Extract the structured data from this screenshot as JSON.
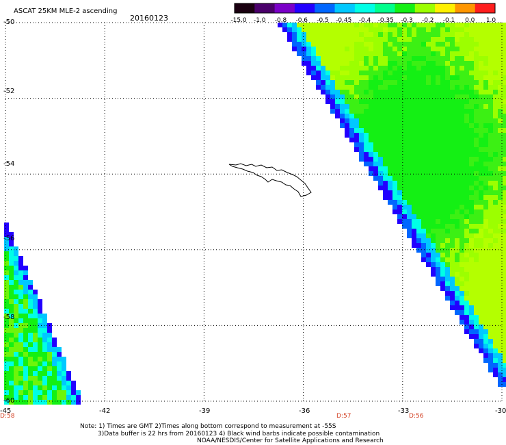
{
  "header": {
    "title": "ASCAT 25KM MLE-2 ascending",
    "date": "20160123"
  },
  "colorbar": {
    "labels": [
      "-15.0",
      "-1.0",
      "-0.8",
      "-0.6",
      "-0.5",
      "-0.45",
      "-0.4",
      "-0.35",
      "-0.3",
      "-0.2",
      "-0.1",
      "0.0",
      "1.0"
    ],
    "colors": [
      "#1a0010",
      "#4a006a",
      "#7a00c8",
      "#2200ff",
      "#0066ff",
      "#00c8ff",
      "#00ffe6",
      "#00ff8c",
      "#14f014",
      "#9cff00",
      "#fff000",
      "#ff9600",
      "#ff1e1e"
    ]
  },
  "axes": {
    "lat_ticks": [
      "-50",
      "-52",
      "-54",
      "-56",
      "-58",
      "-60"
    ],
    "lon_ticks": [
      "-45",
      "-42",
      "-39",
      "-36",
      "-33",
      "-30"
    ]
  },
  "time_labels": [
    {
      "text": "D:58",
      "lon": -45
    },
    {
      "text": "D:57",
      "lon": -34.5
    },
    {
      "text": "D:56",
      "lon": -32.5
    }
  ],
  "notes": [
    "Note: 1) Times are GMT 2)Times along bottom correspond to measurement at -55S",
    "3)Data buffer is 22 hrs from 20160123 4) Black wind barbs indicate possible contamination",
    "NOAA/NESDIS/Center for Satellite Applications and Research"
  ],
  "legend_colors": {
    "land": "#000000",
    "grid": "#000000"
  }
}
